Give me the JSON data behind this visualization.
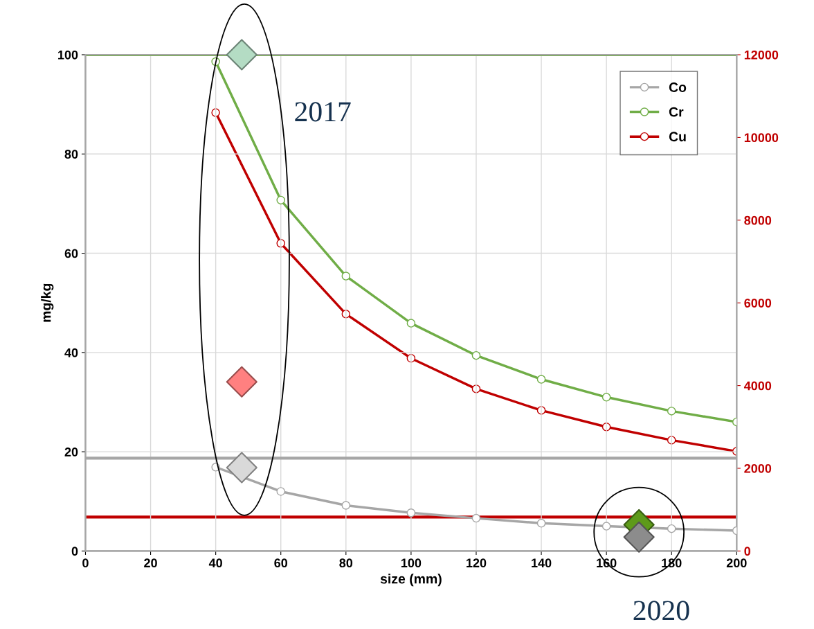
{
  "chart_data": {
    "type": "line",
    "xlabel": "size (mm)",
    "ylabel": "mg/kg",
    "xlim": [
      0,
      200
    ],
    "xticks": [
      0,
      20,
      40,
      60,
      80,
      100,
      120,
      140,
      160,
      180,
      200
    ],
    "ylim": [
      0,
      100
    ],
    "yticks": [
      0,
      20,
      40,
      60,
      80,
      100
    ],
    "y2lim": [
      0,
      12000
    ],
    "y2ticks": [
      0,
      2000,
      4000,
      6000,
      8000,
      10000,
      12000
    ],
    "grid": true,
    "legend": "top right",
    "marker": "circle",
    "line_style": "solid",
    "series": [
      {
        "name": "Co",
        "color": "#a6a6a6",
        "x": [
          40,
          60,
          80,
          100,
          120,
          140,
          160,
          180,
          200
        ],
        "values": [
          16.9,
          12.0,
          9.2,
          7.7,
          6.6,
          5.6,
          5.0,
          4.5,
          4.1
        ]
      },
      {
        "name": "Cr",
        "color": "#70ad47",
        "x": [
          40,
          60,
          80,
          100,
          120,
          140,
          160,
          180,
          200
        ],
        "values": [
          98.6,
          70.7,
          55.4,
          45.9,
          39.4,
          34.6,
          31.0,
          28.2,
          26.0
        ]
      },
      {
        "name": "Cu",
        "color": "#c00000",
        "axis": "y2",
        "x": [
          40,
          60,
          80,
          100,
          120,
          140,
          160,
          180,
          200
        ],
        "values": [
          10600,
          7440,
          5730,
          4660,
          3920,
          3400,
          3000,
          2680,
          2410
        ]
      },
      {
        "type": "scatter",
        "marker": "diamond",
        "color": "#b4dcc4",
        "x": [
          48
        ],
        "values": [
          100
        ]
      },
      {
        "type": "scatter",
        "marker": "diamond",
        "color": "#ff8080",
        "axis": "y2",
        "x": [
          48
        ],
        "values": [
          4090
        ]
      },
      {
        "type": "scatter",
        "marker": "diamond",
        "color": "#d9d9d9",
        "x": [
          48
        ],
        "values": [
          16.8
        ]
      },
      {
        "type": "scatter",
        "marker": "diamond",
        "color": "#5e9a1a",
        "x": [
          170
        ],
        "values": [
          5.3
        ]
      },
      {
        "type": "scatter",
        "marker": "diamond",
        "color": "#8c8c8c",
        "x": [
          170
        ],
        "values": [
          2.8
        ]
      }
    ],
    "ref_lines": [
      {
        "axis": "y",
        "value": 100,
        "color": "#70ad47"
      },
      {
        "axis": "y",
        "value": 18.7,
        "color": "#a6a6a6"
      },
      {
        "axis": "y2",
        "value": 820,
        "color": "#c00000"
      }
    ],
    "annotations": [
      "2017",
      "2020"
    ]
  }
}
